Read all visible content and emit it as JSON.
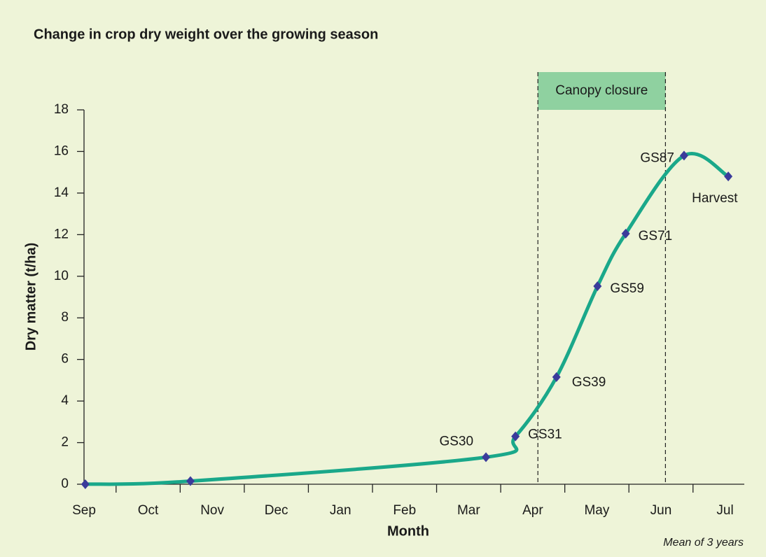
{
  "chart_data": {
    "type": "line",
    "title": "Change in crop dry weight over the growing season",
    "xlabel": "Month",
    "ylabel": "Dry matter (t/ha)",
    "note": "Mean of 3 years",
    "xlim": [
      0,
      10.3
    ],
    "ylim": [
      0,
      18
    ],
    "xticks": [
      {
        "value": 0,
        "label": "Sep"
      },
      {
        "value": 1,
        "label": "Oct"
      },
      {
        "value": 2,
        "label": "Nov"
      },
      {
        "value": 3,
        "label": "Dec"
      },
      {
        "value": 4,
        "label": "Jan"
      },
      {
        "value": 5,
        "label": "Feb"
      },
      {
        "value": 6,
        "label": "Mar"
      },
      {
        "value": 7,
        "label": "Apr"
      },
      {
        "value": 8,
        "label": "May"
      },
      {
        "value": 9,
        "label": "Jun"
      },
      {
        "value": 10,
        "label": "Jul"
      }
    ],
    "xminor_ticks": [
      0.5,
      1.5,
      2.5,
      3.5,
      4.5,
      5.5,
      6.5,
      7.5,
      8.5,
      9.5
    ],
    "yticks": [
      0,
      2,
      4,
      6,
      8,
      10,
      12,
      14,
      16,
      18
    ],
    "shaded_region": {
      "label": "Canopy closure",
      "x": [
        7.08,
        9.07
      ],
      "color": "#8fd1a0"
    },
    "series": [
      {
        "name": "Dry matter",
        "color": "#1aa88a",
        "marker_color": "#3b3b9b",
        "x": [
          0.02,
          1.66,
          6.27,
          6.73,
          7.37,
          8.01,
          8.45,
          9.36,
          10.05
        ],
        "values": [
          0,
          0.15,
          1.3,
          2.3,
          5.15,
          9.52,
          12.05,
          15.8,
          14.8
        ],
        "point_labels": [
          null,
          null,
          "GS30",
          "GS31",
          "GS39",
          "GS59",
          "GS71",
          "GS87",
          "Harvest"
        ]
      }
    ]
  }
}
